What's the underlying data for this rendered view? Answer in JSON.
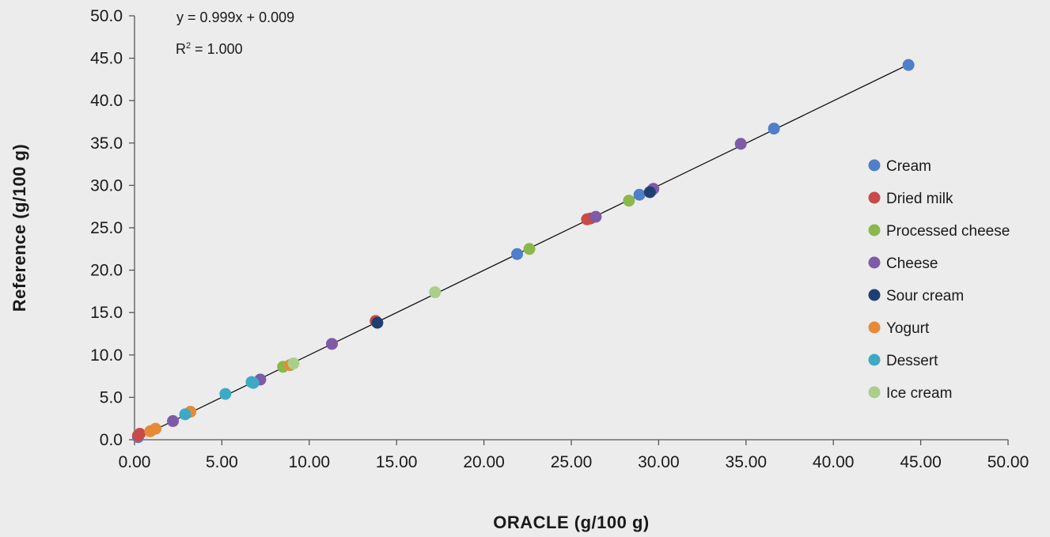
{
  "chart_data": {
    "type": "scatter",
    "xlabel": "ORACLE (g/100 g)",
    "ylabel": "Reference (g/100 g)",
    "xlim": [
      0,
      50
    ],
    "ylim": [
      0,
      50
    ],
    "x_ticks": [
      "0.00",
      "5.00",
      "10.00",
      "15.00",
      "20.00",
      "25.00",
      "30.00",
      "35.00",
      "40.00",
      "45.00",
      "50.00"
    ],
    "y_ticks": [
      "0.0",
      "5.0",
      "10.0",
      "15.0",
      "20.0",
      "25.0",
      "30.0",
      "35.0",
      "40.0",
      "45.0",
      "50.0"
    ],
    "grid": false,
    "legend_position": "right",
    "annotations": {
      "equation": "y = 0.999x + 0.009",
      "r2_prefix": "R",
      "r2_sup": "2",
      "r2_value": " = 1.000"
    },
    "trendline": {
      "slope": 0.999,
      "intercept": 0.009,
      "x_range": [
        0,
        44.3
      ]
    },
    "series": [
      {
        "name": "Cream",
        "color": "#4f7fc9",
        "points": [
          [
            21.9,
            21.9
          ],
          [
            28.9,
            28.9
          ],
          [
            36.6,
            36.7
          ],
          [
            44.3,
            44.2
          ],
          [
            0.2,
            0.3
          ]
        ]
      },
      {
        "name": "Dried milk",
        "color": "#c94a48",
        "points": [
          [
            0.2,
            0.5
          ],
          [
            0.3,
            0.7
          ],
          [
            13.8,
            14.0
          ],
          [
            25.9,
            26.0
          ],
          [
            26.1,
            26.1
          ]
        ]
      },
      {
        "name": "Processed cheese",
        "color": "#8ab84a",
        "points": [
          [
            8.5,
            8.6
          ],
          [
            22.6,
            22.5
          ],
          [
            28.3,
            28.2
          ],
          [
            29.6,
            29.4
          ]
        ]
      },
      {
        "name": "Cheese",
        "color": "#7e5ba6",
        "points": [
          [
            2.2,
            2.2
          ],
          [
            7.2,
            7.1
          ],
          [
            11.3,
            11.3
          ],
          [
            26.4,
            26.3
          ],
          [
            29.7,
            29.6
          ],
          [
            34.7,
            34.9
          ]
        ]
      },
      {
        "name": "Sour cream",
        "color": "#1f3f73",
        "points": [
          [
            13.9,
            13.8
          ],
          [
            29.5,
            29.2
          ]
        ]
      },
      {
        "name": "Yogurt",
        "color": "#e68a38",
        "points": [
          [
            0.9,
            1.0
          ],
          [
            1.2,
            1.3
          ],
          [
            3.2,
            3.3
          ],
          [
            8.9,
            8.8
          ]
        ]
      },
      {
        "name": "Dessert",
        "color": "#3ea9c4",
        "points": [
          [
            2.9,
            3.0
          ],
          [
            5.2,
            5.4
          ],
          [
            6.7,
            6.8
          ],
          [
            6.8,
            6.7
          ]
        ]
      },
      {
        "name": "Ice cream",
        "color": "#a9cf88",
        "points": [
          [
            9.1,
            9.0
          ],
          [
            17.2,
            17.4
          ]
        ]
      }
    ]
  }
}
